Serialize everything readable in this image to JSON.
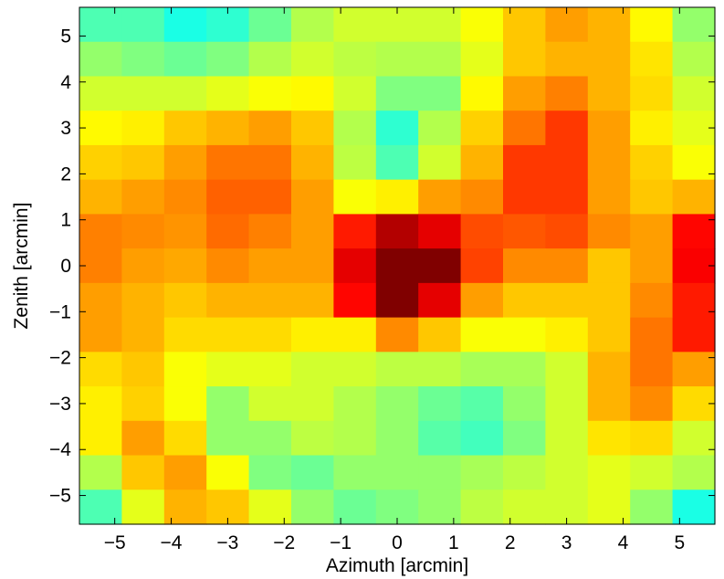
{
  "chart_data": {
    "type": "heatmap",
    "title": "",
    "xlabel": "Azimuth [arcmin]",
    "ylabel": "Zenith [arcmin]",
    "xlim": [
      -5.625,
      5.625
    ],
    "ylim": [
      -5.625,
      5.625
    ],
    "x_ticks": [
      -5,
      -4,
      -3,
      -2,
      -1,
      0,
      1,
      2,
      3,
      4,
      5
    ],
    "y_ticks": [
      -5,
      -4,
      -3,
      -2,
      -1,
      0,
      1,
      2,
      3,
      4,
      5
    ],
    "x_tick_labels": [
      "−5",
      "−4",
      "−3",
      "−2",
      "−1",
      "0",
      "1",
      "2",
      "3",
      "4",
      "5"
    ],
    "y_tick_labels": [
      "−5",
      "−4",
      "−3",
      "−2",
      "−1",
      "0",
      "1",
      "2",
      "3",
      "4",
      "5"
    ],
    "cell_size": 0.75,
    "x_centers": [
      -5.25,
      -4.5,
      -3.75,
      -3.0,
      -2.25,
      -1.5,
      -0.75,
      0.0,
      0.75,
      1.5,
      2.25,
      3.0,
      3.75,
      4.5,
      5.25
    ],
    "y_centers": [
      5.25,
      4.5,
      3.75,
      3.0,
      2.25,
      1.5,
      0.75,
      0.0,
      -0.75,
      -1.5,
      -2.25,
      -3.0,
      -3.75,
      -4.5,
      -5.25
    ],
    "colormap": "jet",
    "color_range": [
      0,
      1
    ],
    "z": [
      [
        0.45,
        0.45,
        0.4,
        0.42,
        0.48,
        0.55,
        0.58,
        0.58,
        0.58,
        0.62,
        0.68,
        0.72,
        0.7,
        0.63,
        0.52
      ],
      [
        0.52,
        0.5,
        0.48,
        0.5,
        0.55,
        0.58,
        0.56,
        0.55,
        0.55,
        0.6,
        0.68,
        0.7,
        0.7,
        0.65,
        0.55
      ],
      [
        0.58,
        0.58,
        0.58,
        0.6,
        0.62,
        0.63,
        0.58,
        0.5,
        0.5,
        0.63,
        0.72,
        0.75,
        0.7,
        0.66,
        0.58
      ],
      [
        0.63,
        0.64,
        0.68,
        0.7,
        0.72,
        0.68,
        0.55,
        0.42,
        0.55,
        0.67,
        0.76,
        0.82,
        0.72,
        0.64,
        0.6
      ],
      [
        0.67,
        0.68,
        0.72,
        0.76,
        0.76,
        0.7,
        0.56,
        0.45,
        0.58,
        0.7,
        0.82,
        0.82,
        0.72,
        0.67,
        0.62
      ],
      [
        0.7,
        0.72,
        0.74,
        0.78,
        0.78,
        0.72,
        0.62,
        0.64,
        0.72,
        0.74,
        0.82,
        0.82,
        0.72,
        0.68,
        0.7
      ],
      [
        0.75,
        0.74,
        0.73,
        0.77,
        0.75,
        0.72,
        0.85,
        0.95,
        0.9,
        0.8,
        0.79,
        0.8,
        0.74,
        0.72,
        0.87
      ],
      [
        0.75,
        0.72,
        0.71,
        0.74,
        0.72,
        0.72,
        0.9,
        1.0,
        1.0,
        0.81,
        0.74,
        0.74,
        0.68,
        0.72,
        0.88
      ],
      [
        0.72,
        0.7,
        0.68,
        0.7,
        0.7,
        0.7,
        0.87,
        1.0,
        0.9,
        0.72,
        0.68,
        0.68,
        0.68,
        0.74,
        0.85
      ],
      [
        0.72,
        0.7,
        0.66,
        0.66,
        0.66,
        0.64,
        0.64,
        0.74,
        0.68,
        0.62,
        0.62,
        0.64,
        0.68,
        0.76,
        0.85
      ],
      [
        0.66,
        0.68,
        0.62,
        0.6,
        0.6,
        0.58,
        0.58,
        0.56,
        0.56,
        0.54,
        0.54,
        0.58,
        0.7,
        0.76,
        0.72
      ],
      [
        0.64,
        0.67,
        0.62,
        0.52,
        0.58,
        0.58,
        0.55,
        0.52,
        0.48,
        0.46,
        0.52,
        0.58,
        0.7,
        0.74,
        0.66
      ],
      [
        0.64,
        0.72,
        0.66,
        0.52,
        0.52,
        0.56,
        0.55,
        0.52,
        0.46,
        0.44,
        0.5,
        0.58,
        0.65,
        0.66,
        0.58
      ],
      [
        0.55,
        0.68,
        0.72,
        0.62,
        0.5,
        0.48,
        0.52,
        0.52,
        0.52,
        0.54,
        0.56,
        0.58,
        0.6,
        0.58,
        0.55
      ],
      [
        0.45,
        0.6,
        0.7,
        0.68,
        0.6,
        0.52,
        0.48,
        0.5,
        0.52,
        0.56,
        0.58,
        0.58,
        0.6,
        0.52,
        0.4
      ]
    ]
  }
}
